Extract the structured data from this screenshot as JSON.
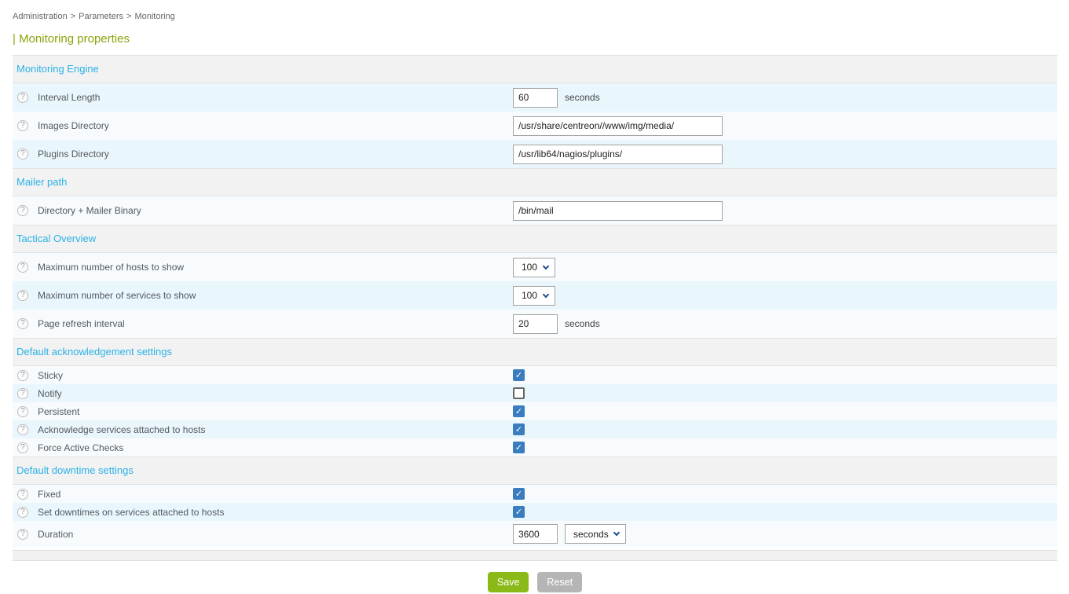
{
  "breadcrumb": {
    "separator": ">",
    "items": [
      "Administration",
      "Parameters",
      "Monitoring"
    ]
  },
  "page": {
    "title": "| Monitoring properties"
  },
  "icons": {
    "help": "?",
    "check": "✓"
  },
  "buttons": {
    "save": "Save",
    "reset": "Reset"
  },
  "colors": {
    "section_title": "#2ab2e7",
    "page_title": "#8aa30a",
    "row_blue": "#e9f6fc",
    "row_pale": "#f7fbfd",
    "checkbox_checked": "#3a7cbe",
    "save_button": "#8bb917",
    "reset_button": "#b5b5b5"
  },
  "sections": [
    {
      "title": "Monitoring Engine",
      "rows": [
        {
          "label": "Interval Length",
          "type": "text",
          "size": "small",
          "value": "60",
          "suffix": "seconds",
          "shade": "blue"
        },
        {
          "label": "Images Directory",
          "type": "text",
          "size": "large",
          "value": "/usr/share/centreon//www/img/media/",
          "shade": "pale"
        },
        {
          "label": "Plugins Directory",
          "type": "text",
          "size": "large",
          "value": "/usr/lib64/nagios/plugins/",
          "shade": "blue"
        }
      ]
    },
    {
      "title": "Mailer path",
      "rows": [
        {
          "label": "Directory + Mailer Binary",
          "type": "text",
          "size": "large",
          "value": "/bin/mail",
          "shade": "pale"
        }
      ]
    },
    {
      "title": "Tactical Overview",
      "rows": [
        {
          "label": "Maximum number of hosts to show",
          "type": "select",
          "value": "100",
          "shade": "pale"
        },
        {
          "label": "Maximum number of services to show",
          "type": "select",
          "value": "100",
          "shade": "blue"
        },
        {
          "label": "Page refresh interval",
          "type": "text",
          "size": "small",
          "value": "20",
          "suffix": "seconds",
          "shade": "pale"
        }
      ]
    },
    {
      "title": "Default acknowledgement settings",
      "rows": [
        {
          "label": "Sticky",
          "type": "checkbox",
          "checked": true,
          "shade": "pale"
        },
        {
          "label": "Notify",
          "type": "checkbox",
          "checked": false,
          "shade": "blue"
        },
        {
          "label": "Persistent",
          "type": "checkbox",
          "checked": true,
          "shade": "pale"
        },
        {
          "label": "Acknowledge services attached to hosts",
          "type": "checkbox",
          "checked": true,
          "shade": "blue"
        },
        {
          "label": "Force Active Checks",
          "type": "checkbox",
          "checked": true,
          "shade": "pale"
        }
      ]
    },
    {
      "title": "Default downtime settings",
      "rows": [
        {
          "label": "Fixed",
          "type": "checkbox",
          "checked": true,
          "shade": "pale"
        },
        {
          "label": "Set downtimes on services attached to hosts",
          "type": "checkbox",
          "checked": true,
          "shade": "blue"
        },
        {
          "label": "Duration",
          "type": "text",
          "size": "small",
          "value": "3600",
          "suffix_select": "seconds",
          "shade": "pale"
        }
      ]
    }
  ]
}
